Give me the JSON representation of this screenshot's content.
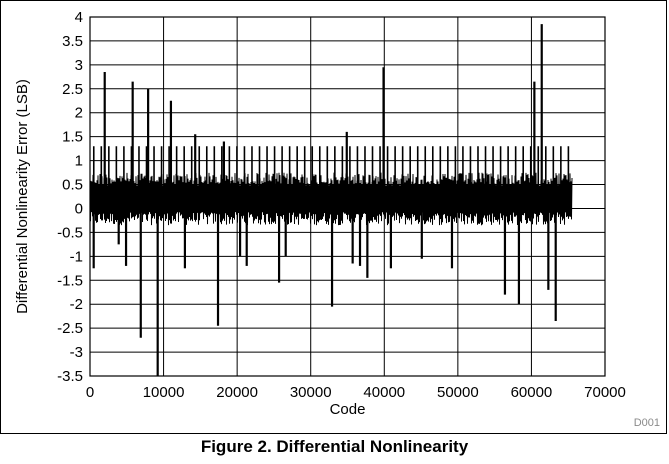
{
  "caption": "Figure 2. Differential Nonlinearity",
  "figure_code": "D001",
  "chart_data": {
    "type": "line",
    "title": "",
    "xlabel": "Code",
    "ylabel": "Differential Nonlinearity Error (LSB)",
    "xlim": [
      0,
      70000
    ],
    "ylim": [
      -3.5,
      4
    ],
    "x_ticks": [
      0,
      10000,
      20000,
      30000,
      40000,
      50000,
      60000,
      70000
    ],
    "y_ticks": [
      -3.5,
      -3,
      -2.5,
      -2,
      -1.5,
      -1,
      -0.5,
      0,
      0.5,
      1,
      1.5,
      2,
      2.5,
      3,
      3.5,
      4
    ],
    "x_tick_labels": [
      "0",
      "10000",
      "20000",
      "30000",
      "40000",
      "50000",
      "60000",
      "70000"
    ],
    "y_tick_labels": [
      "-3.5",
      "-3",
      "-2.5",
      "-2",
      "-1.5",
      "-1",
      "-0.5",
      "0",
      "0.5",
      "1",
      "1.5",
      "2",
      "2.5",
      "3",
      "3.5",
      "4"
    ],
    "grid": true,
    "line_color": "#000000",
    "dense_band": {
      "x": [
        0,
        65535
      ],
      "low": -0.35,
      "high": 0.75
    },
    "periodic_peaks": {
      "x": [
        0,
        65535
      ],
      "step": 1024,
      "value": 1.3
    },
    "spikes": [
      {
        "x": 500,
        "y": -1.25
      },
      {
        "x": 2000,
        "y": 2.85
      },
      {
        "x": 3900,
        "y": -0.75
      },
      {
        "x": 4900,
        "y": -1.2
      },
      {
        "x": 5800,
        "y": 2.65
      },
      {
        "x": 6900,
        "y": -2.7
      },
      {
        "x": 7900,
        "y": 2.5
      },
      {
        "x": 9200,
        "y": -3.5
      },
      {
        "x": 11000,
        "y": 2.25
      },
      {
        "x": 12900,
        "y": -1.25
      },
      {
        "x": 14300,
        "y": 1.55
      },
      {
        "x": 17400,
        "y": -2.45
      },
      {
        "x": 18200,
        "y": 1.4
      },
      {
        "x": 20400,
        "y": -1.0
      },
      {
        "x": 21300,
        "y": -1.2
      },
      {
        "x": 25700,
        "y": -1.55
      },
      {
        "x": 26600,
        "y": -1.0
      },
      {
        "x": 32900,
        "y": -2.05
      },
      {
        "x": 34900,
        "y": 1.6
      },
      {
        "x": 35700,
        "y": -1.15
      },
      {
        "x": 36700,
        "y": -1.2
      },
      {
        "x": 37700,
        "y": -1.45
      },
      {
        "x": 39900,
        "y": 2.95
      },
      {
        "x": 40900,
        "y": -1.25
      },
      {
        "x": 45100,
        "y": -1.05
      },
      {
        "x": 49200,
        "y": -1.25
      },
      {
        "x": 56400,
        "y": -1.8
      },
      {
        "x": 58300,
        "y": -2.0
      },
      {
        "x": 60400,
        "y": 2.65
      },
      {
        "x": 61400,
        "y": 3.85
      },
      {
        "x": 62300,
        "y": -1.7
      },
      {
        "x": 63300,
        "y": -2.35
      }
    ]
  }
}
